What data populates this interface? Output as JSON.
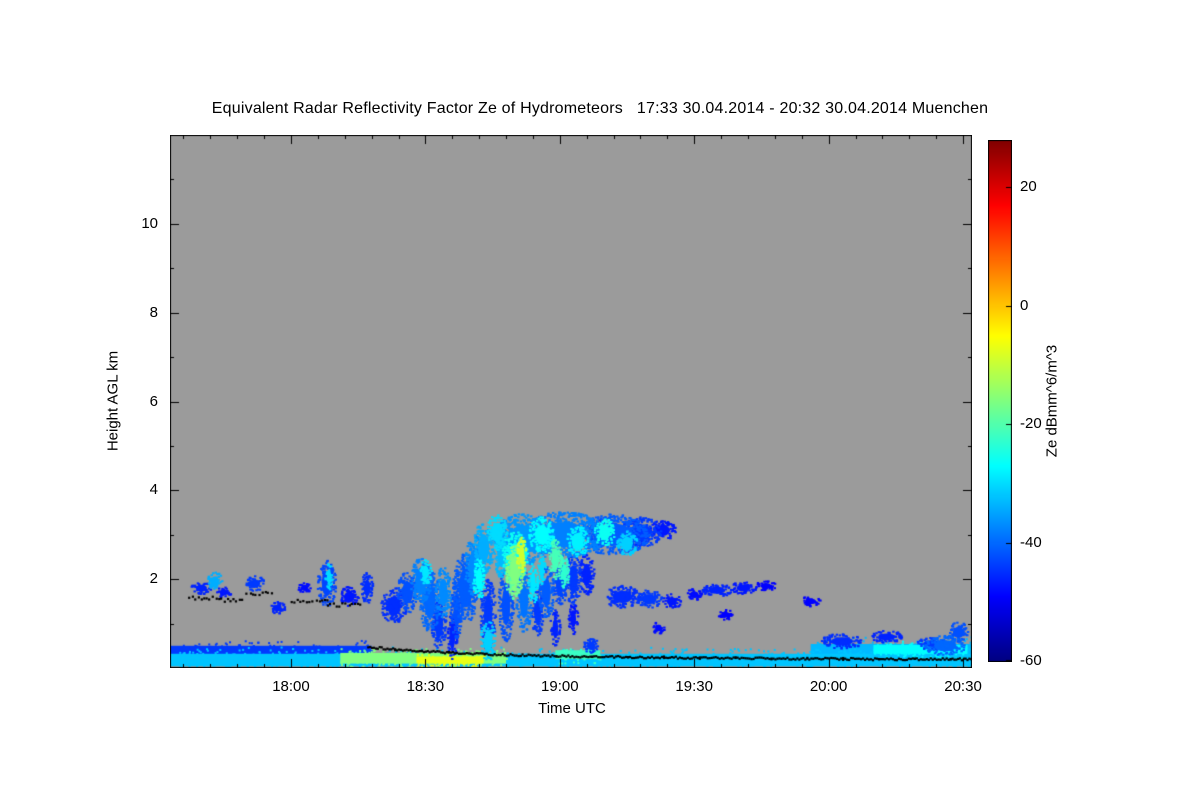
{
  "chart_data": {
    "type": "heatmap",
    "title": "Equivalent Radar Reflectivity Factor Ze of Hydrometeors   17:33 30.04.2014 - 20:32 30.04.2014 Muenchen",
    "xlabel": "Time UTC",
    "ylabel": "Height AGL km",
    "station": "Muenchen",
    "x_start_utc": "17:33",
    "x_end_utc": "20:32",
    "x_span_minutes": 179,
    "x_ticks": [
      {
        "label": "18:00",
        "minute": 27
      },
      {
        "label": "18:30",
        "minute": 57
      },
      {
        "label": "19:00",
        "minute": 87
      },
      {
        "label": "19:30",
        "minute": 117
      },
      {
        "label": "20:00",
        "minute": 147
      },
      {
        "label": "20:30",
        "minute": 177
      }
    ],
    "x_minor_tick_minutes": 6,
    "ylim": [
      0,
      12
    ],
    "y_ticks": [
      {
        "label": "2",
        "km": 2
      },
      {
        "label": "4",
        "km": 4
      },
      {
        "label": "6",
        "km": 6
      },
      {
        "label": "8",
        "km": 8
      },
      {
        "label": "10",
        "km": 10
      }
    ],
    "y_minor_tick_km": 1,
    "plot_background": "#9b9b9b",
    "colorbar": {
      "label": "Ze dBmm^6/m^3",
      "range": [
        -60,
        28
      ],
      "ticks": [
        {
          "label": "20",
          "value": 20
        },
        {
          "label": "0",
          "value": 0
        },
        {
          "label": "-20",
          "value": -20
        },
        {
          "label": "-40",
          "value": -40
        },
        {
          "label": "-60",
          "value": -60
        }
      ],
      "stops": [
        [
          -60,
          "#000080"
        ],
        [
          -49,
          "#0000FF"
        ],
        [
          -27,
          "#00FFFF"
        ],
        [
          -5,
          "#FFFF00"
        ],
        [
          17,
          "#FF0000"
        ],
        [
          28,
          "#800000"
        ]
      ]
    },
    "echoes_format": "[minutes_after_17:33, height_km, half_width_min, half_height_km, Ze_dB]",
    "echoes": [
      [
        7,
        1.8,
        2,
        0.12,
        -46
      ],
      [
        10,
        1.95,
        1.5,
        0.18,
        -34
      ],
      [
        12,
        1.7,
        1.5,
        0.1,
        -47
      ],
      [
        19,
        1.9,
        1.8,
        0.15,
        -44
      ],
      [
        24,
        1.35,
        1.5,
        0.12,
        -46
      ],
      [
        30,
        1.8,
        1.2,
        0.1,
        -48
      ],
      [
        35,
        1.9,
        1.8,
        0.45,
        -43
      ],
      [
        35.5,
        2.05,
        0.8,
        0.25,
        -30
      ],
      [
        40,
        1.6,
        1.8,
        0.2,
        -47
      ],
      [
        44,
        1.8,
        1.2,
        0.3,
        -45
      ],
      [
        50,
        1.4,
        2.5,
        0.35,
        -45
      ],
      [
        53,
        1.7,
        2,
        0.4,
        -42
      ],
      [
        56,
        1.95,
        2,
        0.45,
        -38
      ],
      [
        57,
        2.15,
        1.2,
        0.25,
        -29
      ],
      [
        58,
        1.5,
        2,
        0.6,
        -40
      ],
      [
        60,
        1.0,
        1.5,
        0.5,
        -44
      ],
      [
        61,
        1.7,
        1.5,
        0.5,
        -37
      ],
      [
        63,
        0.7,
        1,
        0.45,
        -46
      ],
      [
        64,
        1.3,
        1.2,
        0.6,
        -42
      ],
      [
        66,
        1.8,
        2.5,
        0.7,
        -41
      ],
      [
        68,
        2.3,
        2,
        0.6,
        -37
      ],
      [
        69,
        2.0,
        1.2,
        0.4,
        -27
      ],
      [
        70,
        2.7,
        2,
        0.5,
        -34
      ],
      [
        71,
        1.2,
        1.5,
        0.7,
        -44
      ],
      [
        71,
        0.6,
        1.5,
        0.4,
        -31
      ],
      [
        73,
        3.05,
        2,
        0.35,
        -30
      ],
      [
        74,
        2.6,
        1.5,
        0.5,
        -33
      ],
      [
        75,
        1.4,
        1.5,
        0.7,
        -42
      ],
      [
        76.5,
        1.95,
        1.3,
        0.35,
        -19
      ],
      [
        77,
        2.2,
        1.8,
        0.5,
        -16
      ],
      [
        77,
        2.5,
        2.5,
        0.5,
        -26
      ],
      [
        78.5,
        2.55,
        1,
        0.35,
        -9
      ],
      [
        79,
        1.5,
        1.5,
        0.6,
        -39
      ],
      [
        79,
        2.9,
        6,
        0.5,
        -36
      ],
      [
        81,
        1.9,
        1,
        0.4,
        -29
      ],
      [
        82,
        1.3,
        1.2,
        0.5,
        -44
      ],
      [
        83,
        2.2,
        0.8,
        0.3,
        -30
      ],
      [
        83,
        3.0,
        2.5,
        0.35,
        -27
      ],
      [
        84,
        1.7,
        1.6,
        0.5,
        -41
      ],
      [
        86,
        0.9,
        1,
        0.35,
        -46
      ],
      [
        86,
        2.45,
        1.3,
        0.4,
        -21
      ],
      [
        87,
        1.9,
        1.4,
        0.45,
        -43
      ],
      [
        88,
        2.15,
        1,
        0.3,
        -23
      ],
      [
        88,
        3.0,
        8,
        0.45,
        -38
      ],
      [
        90,
        1.1,
        1,
        0.3,
        -47
      ],
      [
        90,
        2.0,
        1.6,
        0.5,
        -44
      ],
      [
        91,
        2.85,
        2.2,
        0.3,
        -28
      ],
      [
        93,
        2.1,
        1.5,
        0.4,
        -46
      ],
      [
        94,
        0.5,
        1.5,
        0.15,
        -44
      ],
      [
        96,
        3.05,
        2,
        0.25,
        -44
      ],
      [
        97,
        3.05,
        2,
        0.28,
        -26
      ],
      [
        99,
        3.0,
        7,
        0.4,
        -41
      ],
      [
        101,
        1.6,
        3.5,
        0.22,
        -45
      ],
      [
        102,
        2.8,
        2,
        0.25,
        -31
      ],
      [
        104,
        2.95,
        1.5,
        0.2,
        -46
      ],
      [
        105,
        3.05,
        4,
        0.3,
        -44
      ],
      [
        107,
        1.55,
        2.5,
        0.18,
        -44
      ],
      [
        109,
        0.9,
        1.2,
        0.12,
        -48
      ],
      [
        110,
        3.1,
        2.5,
        0.2,
        -47
      ],
      [
        112,
        1.5,
        1.8,
        0.15,
        -47
      ],
      [
        117,
        1.65,
        1.5,
        0.12,
        -48
      ],
      [
        122,
        1.75,
        3,
        0.13,
        -46
      ],
      [
        124,
        1.2,
        1.5,
        0.1,
        -49
      ],
      [
        128,
        1.8,
        2.5,
        0.12,
        -47
      ],
      [
        133,
        1.85,
        2,
        0.1,
        -49
      ],
      [
        143,
        1.5,
        2,
        0.1,
        -49
      ],
      [
        150,
        0.6,
        4,
        0.15,
        -45
      ],
      [
        160,
        0.7,
        3,
        0.12,
        -46
      ],
      [
        170,
        0.55,
        3,
        0.12,
        -44
      ],
      [
        173,
        0.5,
        4,
        0.2,
        -40
      ],
      [
        176,
        0.8,
        2,
        0.2,
        -42
      ]
    ],
    "bands_format": "[t0_min, t1_min, center_height_km, half_height_km, Ze_dB]",
    "bands": [
      [
        0,
        179,
        0.18,
        0.14,
        -32
      ],
      [
        0,
        45,
        0.38,
        0.12,
        -44
      ],
      [
        38,
        75,
        0.22,
        0.12,
        -16
      ],
      [
        55,
        70,
        0.18,
        0.08,
        -7
      ],
      [
        86,
        96,
        0.3,
        0.1,
        -22
      ],
      [
        143,
        179,
        0.4,
        0.14,
        -33
      ],
      [
        157,
        178,
        0.42,
        0.1,
        -27
      ]
    ],
    "cloud_base_trace": [
      [
        44,
        0.5
      ],
      [
        50,
        0.44
      ],
      [
        56,
        0.4
      ],
      [
        62,
        0.37
      ],
      [
        70,
        0.33
      ],
      [
        78,
        0.31
      ],
      [
        86,
        0.29
      ],
      [
        94,
        0.28
      ],
      [
        102,
        0.27
      ],
      [
        110,
        0.26
      ],
      [
        118,
        0.25
      ],
      [
        126,
        0.25
      ],
      [
        134,
        0.24
      ],
      [
        142,
        0.23
      ],
      [
        150,
        0.23
      ],
      [
        158,
        0.22
      ],
      [
        166,
        0.22
      ],
      [
        174,
        0.22
      ],
      [
        179,
        0.22
      ]
    ],
    "cloud_base_markers": [
      [
        4,
        9,
        1.6
      ],
      [
        10,
        16,
        1.55
      ],
      [
        17,
        22,
        1.7
      ],
      [
        27,
        35,
        1.52
      ],
      [
        35,
        42,
        1.45
      ]
    ]
  }
}
